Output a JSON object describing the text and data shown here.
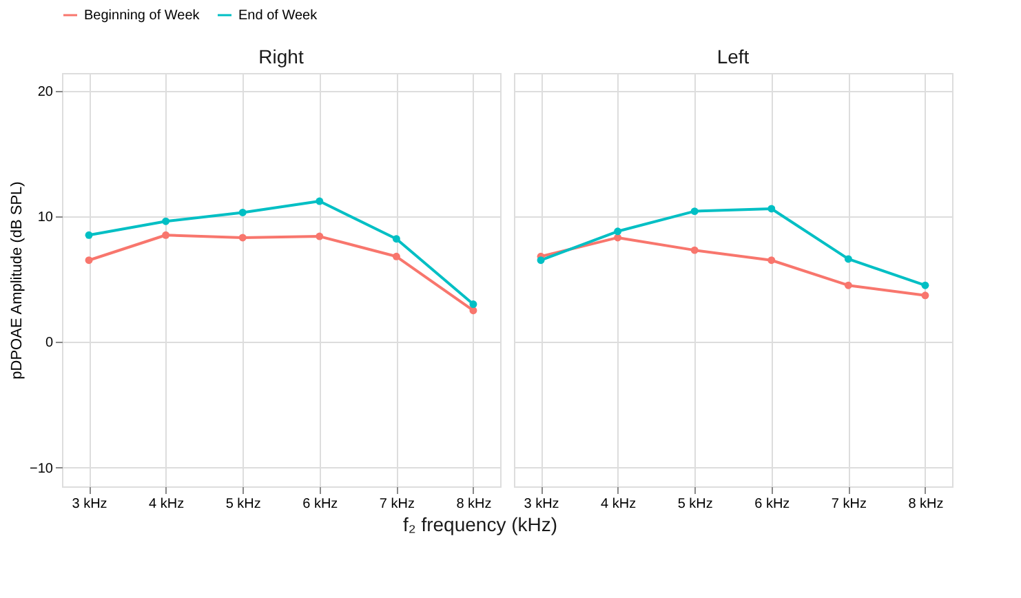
{
  "chart_data": [
    {
      "type": "line",
      "title": "Right",
      "ylabel": "pDPOAE Amplitude (dB SPL)",
      "xlabel": "f₂ frequency (kHz)",
      "categories": [
        "3 kHz",
        "4 kHz",
        "5 kHz",
        "6 kHz",
        "7 kHz",
        "8 kHz"
      ],
      "ylim": [
        -11.5,
        21.4
      ],
      "yticks": [
        -10,
        0,
        10,
        20
      ],
      "grid": true,
      "legend": "top",
      "marker": "circle",
      "line_style": "solid",
      "series": [
        {
          "name": "Beginning of Week",
          "color": "#f8766d",
          "values": [
            6.5,
            8.5,
            8.3,
            8.4,
            6.8,
            2.5
          ]
        },
        {
          "name": "End of Week",
          "color": "#00bfc4",
          "values": [
            8.5,
            9.6,
            10.3,
            11.2,
            8.2,
            3.0
          ]
        }
      ]
    },
    {
      "type": "line",
      "title": "Left",
      "categories": [
        "3 kHz",
        "4 kHz",
        "5 kHz",
        "6 kHz",
        "7 kHz",
        "8 kHz"
      ],
      "ylim": [
        -11.5,
        21.4
      ],
      "yticks": [
        -10,
        0,
        10,
        20
      ],
      "grid": true,
      "legend": "top",
      "marker": "circle",
      "line_style": "solid",
      "tick_labels": "x",
      "series": [
        {
          "name": "Beginning of Week",
          "color": "#f8766d",
          "values": [
            6.8,
            8.3,
            7.3,
            6.5,
            4.5,
            3.7
          ]
        },
        {
          "name": "End of Week",
          "color": "#00bfc4",
          "values": [
            6.5,
            8.8,
            10.4,
            10.6,
            6.6,
            4.5
          ]
        }
      ]
    }
  ]
}
